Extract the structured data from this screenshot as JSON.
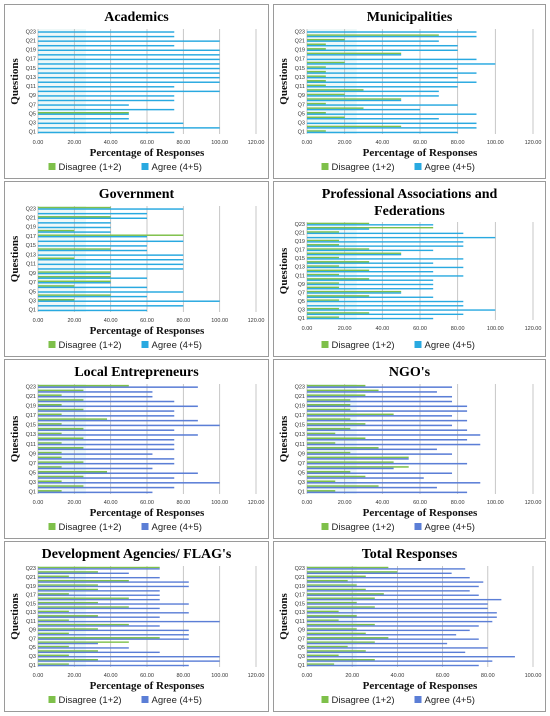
{
  "figure": {
    "legend_disagree": "Disagree (1+2)",
    "legend_agree": "Agree (4+5)",
    "disagree_color": "#7ec04a",
    "agree_color_cyan": "#29a9e0",
    "agree_color_blue": "#5b7ed6"
  },
  "chart_data": [
    {
      "type": "bar",
      "title": [
        "Academics"
      ],
      "xlabel": "Percentage of Responses",
      "ylabel": "Questions",
      "xlim": [
        0,
        120
      ],
      "xticks": [
        "0.00",
        "20.00",
        "40.00",
        "60.00",
        "80.00",
        "100.00",
        "120.00"
      ],
      "categories": [
        "Q1",
        "Q2",
        "Q3",
        "Q4",
        "Q5",
        "Q6",
        "Q7",
        "Q8",
        "Q9",
        "Q10",
        "Q11",
        "Q12",
        "Q13",
        "Q14",
        "Q15",
        "Q16",
        "Q17",
        "Q18",
        "Q19",
        "Q20",
        "Q21",
        "Q22",
        "Q23"
      ],
      "ytick_labels": [
        "Q1",
        "Q3",
        "Q5",
        "Q7",
        "Q9",
        "Q11",
        "Q13",
        "Q15",
        "Q17",
        "Q19",
        "Q21",
        "Q23"
      ],
      "agree_color": "#29a9e0",
      "series": [
        {
          "name": "Disagree (1+2)",
          "values": [
            0,
            0,
            0,
            0,
            50,
            0,
            0,
            0,
            0,
            0,
            0,
            0,
            0,
            0,
            0,
            0,
            0,
            0,
            0,
            0,
            0,
            0,
            0
          ]
        },
        {
          "name": "Agree (4+5)",
          "values": [
            75,
            100,
            80,
            50,
            50,
            75,
            50,
            75,
            75,
            100,
            75,
            100,
            100,
            100,
            100,
            100,
            100,
            100,
            100,
            75,
            100,
            75,
            75
          ]
        }
      ]
    },
    {
      "type": "bar",
      "title": [
        "Municipalities"
      ],
      "xlabel": "Percentage of Responses",
      "ylabel": "Questions",
      "xlim": [
        0,
        120
      ],
      "xticks": [
        "0.00",
        "20.00",
        "40.00",
        "60.00",
        "80.00",
        "100.00",
        "120.00"
      ],
      "categories": [
        "Q1",
        "Q2",
        "Q3",
        "Q4",
        "Q5",
        "Q6",
        "Q7",
        "Q8",
        "Q9",
        "Q10",
        "Q11",
        "Q12",
        "Q13",
        "Q14",
        "Q15",
        "Q16",
        "Q17",
        "Q18",
        "Q19",
        "Q20",
        "Q21",
        "Q22",
        "Q23"
      ],
      "ytick_labels": [
        "Q1",
        "Q3",
        "Q5",
        "Q7",
        "Q9",
        "Q11",
        "Q13",
        "Q15",
        "Q17",
        "Q19",
        "Q21",
        "Q23"
      ],
      "agree_color": "#29a9e0",
      "series": [
        {
          "name": "Disagree (1+2)",
          "values": [
            10,
            50,
            0,
            20,
            10,
            30,
            10,
            50,
            20,
            30,
            10,
            10,
            10,
            10,
            10,
            20,
            0,
            50,
            10,
            10,
            20,
            70,
            0
          ]
        },
        {
          "name": "Agree (4+5)",
          "values": [
            80,
            90,
            90,
            70,
            90,
            60,
            80,
            50,
            70,
            70,
            80,
            90,
            80,
            90,
            80,
            100,
            90,
            50,
            80,
            80,
            70,
            90,
            90
          ]
        }
      ]
    },
    {
      "type": "bar",
      "title": [
        "Government"
      ],
      "xlabel": "Percentage of Responses",
      "ylabel": "Questions",
      "xlim": [
        0,
        120
      ],
      "xticks": [
        "0.00",
        "20.00",
        "40.00",
        "60.00",
        "80.00",
        "100.00",
        "120.00"
      ],
      "categories": [
        "Q1",
        "Q2",
        "Q3",
        "Q4",
        "Q5",
        "Q6",
        "Q7",
        "Q8",
        "Q9",
        "Q10",
        "Q11",
        "Q12",
        "Q13",
        "Q14",
        "Q15",
        "Q16",
        "Q17",
        "Q18",
        "Q19",
        "Q20",
        "Q21",
        "Q22",
        "Q23"
      ],
      "ytick_labels": [
        "Q1",
        "Q3",
        "Q5",
        "Q7",
        "Q9",
        "Q11",
        "Q13",
        "Q15",
        "Q17",
        "Q19",
        "Q21",
        "Q23"
      ],
      "agree_color": "#29a9e0",
      "series": [
        {
          "name": "Disagree (1+2)",
          "values": [
            0,
            0,
            20,
            40,
            0,
            20,
            40,
            40,
            40,
            0,
            0,
            20,
            0,
            40,
            0,
            0,
            80,
            20,
            0,
            0,
            40,
            0,
            40
          ]
        },
        {
          "name": "Agree (4+5)",
          "values": [
            60,
            80,
            100,
            60,
            80,
            60,
            40,
            60,
            40,
            80,
            80,
            80,
            80,
            60,
            60,
            80,
            60,
            40,
            40,
            40,
            60,
            60,
            80
          ]
        }
      ]
    },
    {
      "type": "bar",
      "title": [
        "Professional Associations and",
        "Federations"
      ],
      "xlabel": "",
      "ylabel": "Questions",
      "xlim": [
        0,
        120
      ],
      "xticks": [
        "0.00",
        "20.00",
        "40.00",
        "60.00",
        "80.00",
        "100.00",
        "120.00"
      ],
      "categories": [
        "Q1",
        "Q2",
        "Q3",
        "Q4",
        "Q5",
        "Q6",
        "Q7",
        "Q8",
        "Q9",
        "Q10",
        "Q11",
        "Q12",
        "Q13",
        "Q14",
        "Q15",
        "Q16",
        "Q17",
        "Q18",
        "Q19",
        "Q20",
        "Q21",
        "Q22",
        "Q23"
      ],
      "ytick_labels": [
        "Q1",
        "Q3",
        "Q5",
        "Q7",
        "Q9",
        "Q11",
        "Q13",
        "Q15",
        "Q17",
        "Q19",
        "Q21",
        "Q23"
      ],
      "agree_color": "#29a9e0",
      "series": [
        {
          "name": "Disagree (1+2)",
          "values": [
            17,
            33,
            17,
            0,
            17,
            33,
            50,
            17,
            17,
            33,
            17,
            33,
            17,
            33,
            17,
            50,
            33,
            17,
            17,
            0,
            17,
            67,
            33
          ]
        },
        {
          "name": "Agree (4+5)",
          "values": [
            67,
            83,
            100,
            83,
            83,
            67,
            50,
            67,
            67,
            67,
            83,
            67,
            83,
            67,
            83,
            50,
            67,
            83,
            83,
            100,
            83,
            33,
            67
          ]
        }
      ]
    },
    {
      "type": "bar",
      "title": [
        "Local Entrepreneurs"
      ],
      "xlabel": "Percentage of Responses",
      "ylabel": "Questions",
      "xlim": [
        0,
        120
      ],
      "xticks": [
        "0.00",
        "20.00",
        "40.00",
        "60.00",
        "80.00",
        "100.00",
        "120.00"
      ],
      "categories": [
        "Q1",
        "Q2",
        "Q3",
        "Q4",
        "Q5",
        "Q6",
        "Q7",
        "Q8",
        "Q9",
        "Q10",
        "Q11",
        "Q12",
        "Q13",
        "Q14",
        "Q15",
        "Q16",
        "Q17",
        "Q18",
        "Q19",
        "Q20",
        "Q21",
        "Q22",
        "Q23"
      ],
      "ytick_labels": [
        "Q1",
        "Q3",
        "Q5",
        "Q7",
        "Q9",
        "Q11",
        "Q13",
        "Q15",
        "Q17",
        "Q19",
        "Q21",
        "Q23"
      ],
      "agree_color": "#5b7ed6",
      "series": [
        {
          "name": "Disagree (1+2)",
          "values": [
            13,
            25,
            13,
            25,
            38,
            13,
            25,
            13,
            13,
            25,
            13,
            25,
            13,
            25,
            13,
            38,
            13,
            25,
            13,
            25,
            13,
            25,
            50
          ]
        },
        {
          "name": "Agree (4+5)",
          "values": [
            63,
            75,
            100,
            75,
            88,
            63,
            75,
            75,
            63,
            75,
            75,
            75,
            88,
            75,
            100,
            88,
            75,
            75,
            88,
            75,
            63,
            63,
            88
          ]
        }
      ]
    },
    {
      "type": "bar",
      "title": [
        "NGO's"
      ],
      "xlabel": "Percentage of Responses",
      "ylabel": "Questions",
      "xlim": [
        0,
        120
      ],
      "xticks": [
        "0.00",
        "20.00",
        "40.00",
        "60.00",
        "80.00",
        "100.00",
        "120.00"
      ],
      "categories": [
        "Q1",
        "Q2",
        "Q3",
        "Q4",
        "Q5",
        "Q6",
        "Q7",
        "Q8",
        "Q9",
        "Q10",
        "Q11",
        "Q12",
        "Q13",
        "Q14",
        "Q15",
        "Q16",
        "Q17",
        "Q18",
        "Q19",
        "Q20",
        "Q21",
        "Q22",
        "Q23"
      ],
      "ytick_labels": [
        "Q1",
        "Q3",
        "Q5",
        "Q7",
        "Q9",
        "Q11",
        "Q13",
        "Q15",
        "Q17",
        "Q19",
        "Q21",
        "Q23"
      ],
      "agree_color": "#5b7ed6",
      "series": [
        {
          "name": "Disagree (1+2)",
          "values": [
            15,
            38,
            15,
            31,
            23,
            54,
            46,
            54,
            23,
            38,
            15,
            31,
            15,
            23,
            31,
            23,
            46,
            23,
            23,
            23,
            31,
            38,
            31
          ]
        },
        {
          "name": "Agree (4+5)",
          "values": [
            85,
            69,
            92,
            62,
            77,
            46,
            85,
            54,
            77,
            69,
            92,
            85,
            92,
            85,
            77,
            85,
            77,
            85,
            85,
            77,
            77,
            69,
            77
          ]
        }
      ]
    },
    {
      "type": "bar",
      "title": [
        "Development Agencies/ FLAG's"
      ],
      "xlabel": "Percentage of Responses",
      "ylabel": "Questions",
      "xlim": [
        0,
        120
      ],
      "xticks": [
        "0.00",
        "20.00",
        "40.00",
        "60.00",
        "80.00",
        "100.00",
        "120.00"
      ],
      "categories": [
        "Q1",
        "Q2",
        "Q3",
        "Q4",
        "Q5",
        "Q6",
        "Q7",
        "Q8",
        "Q9",
        "Q10",
        "Q11",
        "Q12",
        "Q13",
        "Q14",
        "Q15",
        "Q16",
        "Q17",
        "Q18",
        "Q19",
        "Q20",
        "Q21",
        "Q22",
        "Q23"
      ],
      "ytick_labels": [
        "Q1",
        "Q3",
        "Q5",
        "Q7",
        "Q9",
        "Q11",
        "Q13",
        "Q15",
        "Q17",
        "Q19",
        "Q21",
        "Q23"
      ],
      "agree_color": "#5b7ed6",
      "series": [
        {
          "name": "Disagree (1+2)",
          "values": [
            17,
            33,
            17,
            33,
            17,
            50,
            67,
            17,
            33,
            50,
            17,
            33,
            17,
            50,
            33,
            50,
            17,
            33,
            33,
            50,
            17,
            33,
            67
          ]
        },
        {
          "name": "Agree (4+5)",
          "values": [
            83,
            100,
            100,
            67,
            50,
            33,
            83,
            83,
            83,
            67,
            100,
            67,
            83,
            67,
            83,
            67,
            67,
            67,
            83,
            83,
            67,
            50,
            67
          ]
        }
      ]
    },
    {
      "type": "bar",
      "title": [
        "Total Responses"
      ],
      "xlabel": "Percentage of Responses",
      "ylabel": "Questions",
      "xlim": [
        0,
        100
      ],
      "xticks": [
        "0.00",
        "20.00",
        "40.00",
        "60.00",
        "80.00",
        "100.00"
      ],
      "categories": [
        "Q1",
        "Q2",
        "Q3",
        "Q4",
        "Q5",
        "Q6",
        "Q7",
        "Q8",
        "Q9",
        "Q10",
        "Q11",
        "Q12",
        "Q13",
        "Q14",
        "Q15",
        "Q16",
        "Q17",
        "Q18",
        "Q19",
        "Q20",
        "Q21",
        "Q22",
        "Q23"
      ],
      "ytick_labels": [
        "Q1",
        "Q3",
        "Q5",
        "Q7",
        "Q9",
        "Q11",
        "Q13",
        "Q15",
        "Q17",
        "Q19",
        "Q21",
        "Q23"
      ],
      "agree_color": "#5b7ed6",
      "series": [
        {
          "name": "Disagree (1+2)",
          "values": [
            12,
            30,
            14,
            26,
            18,
            30,
            36,
            26,
            22,
            30,
            14,
            22,
            14,
            30,
            22,
            30,
            34,
            26,
            22,
            18,
            26,
            40,
            36
          ]
        },
        {
          "name": "Agree (4+5)",
          "values": [
            76,
            82,
            92,
            70,
            80,
            62,
            76,
            66,
            72,
            76,
            82,
            84,
            84,
            80,
            80,
            86,
            76,
            72,
            76,
            78,
            72,
            64,
            70
          ]
        }
      ]
    }
  ]
}
